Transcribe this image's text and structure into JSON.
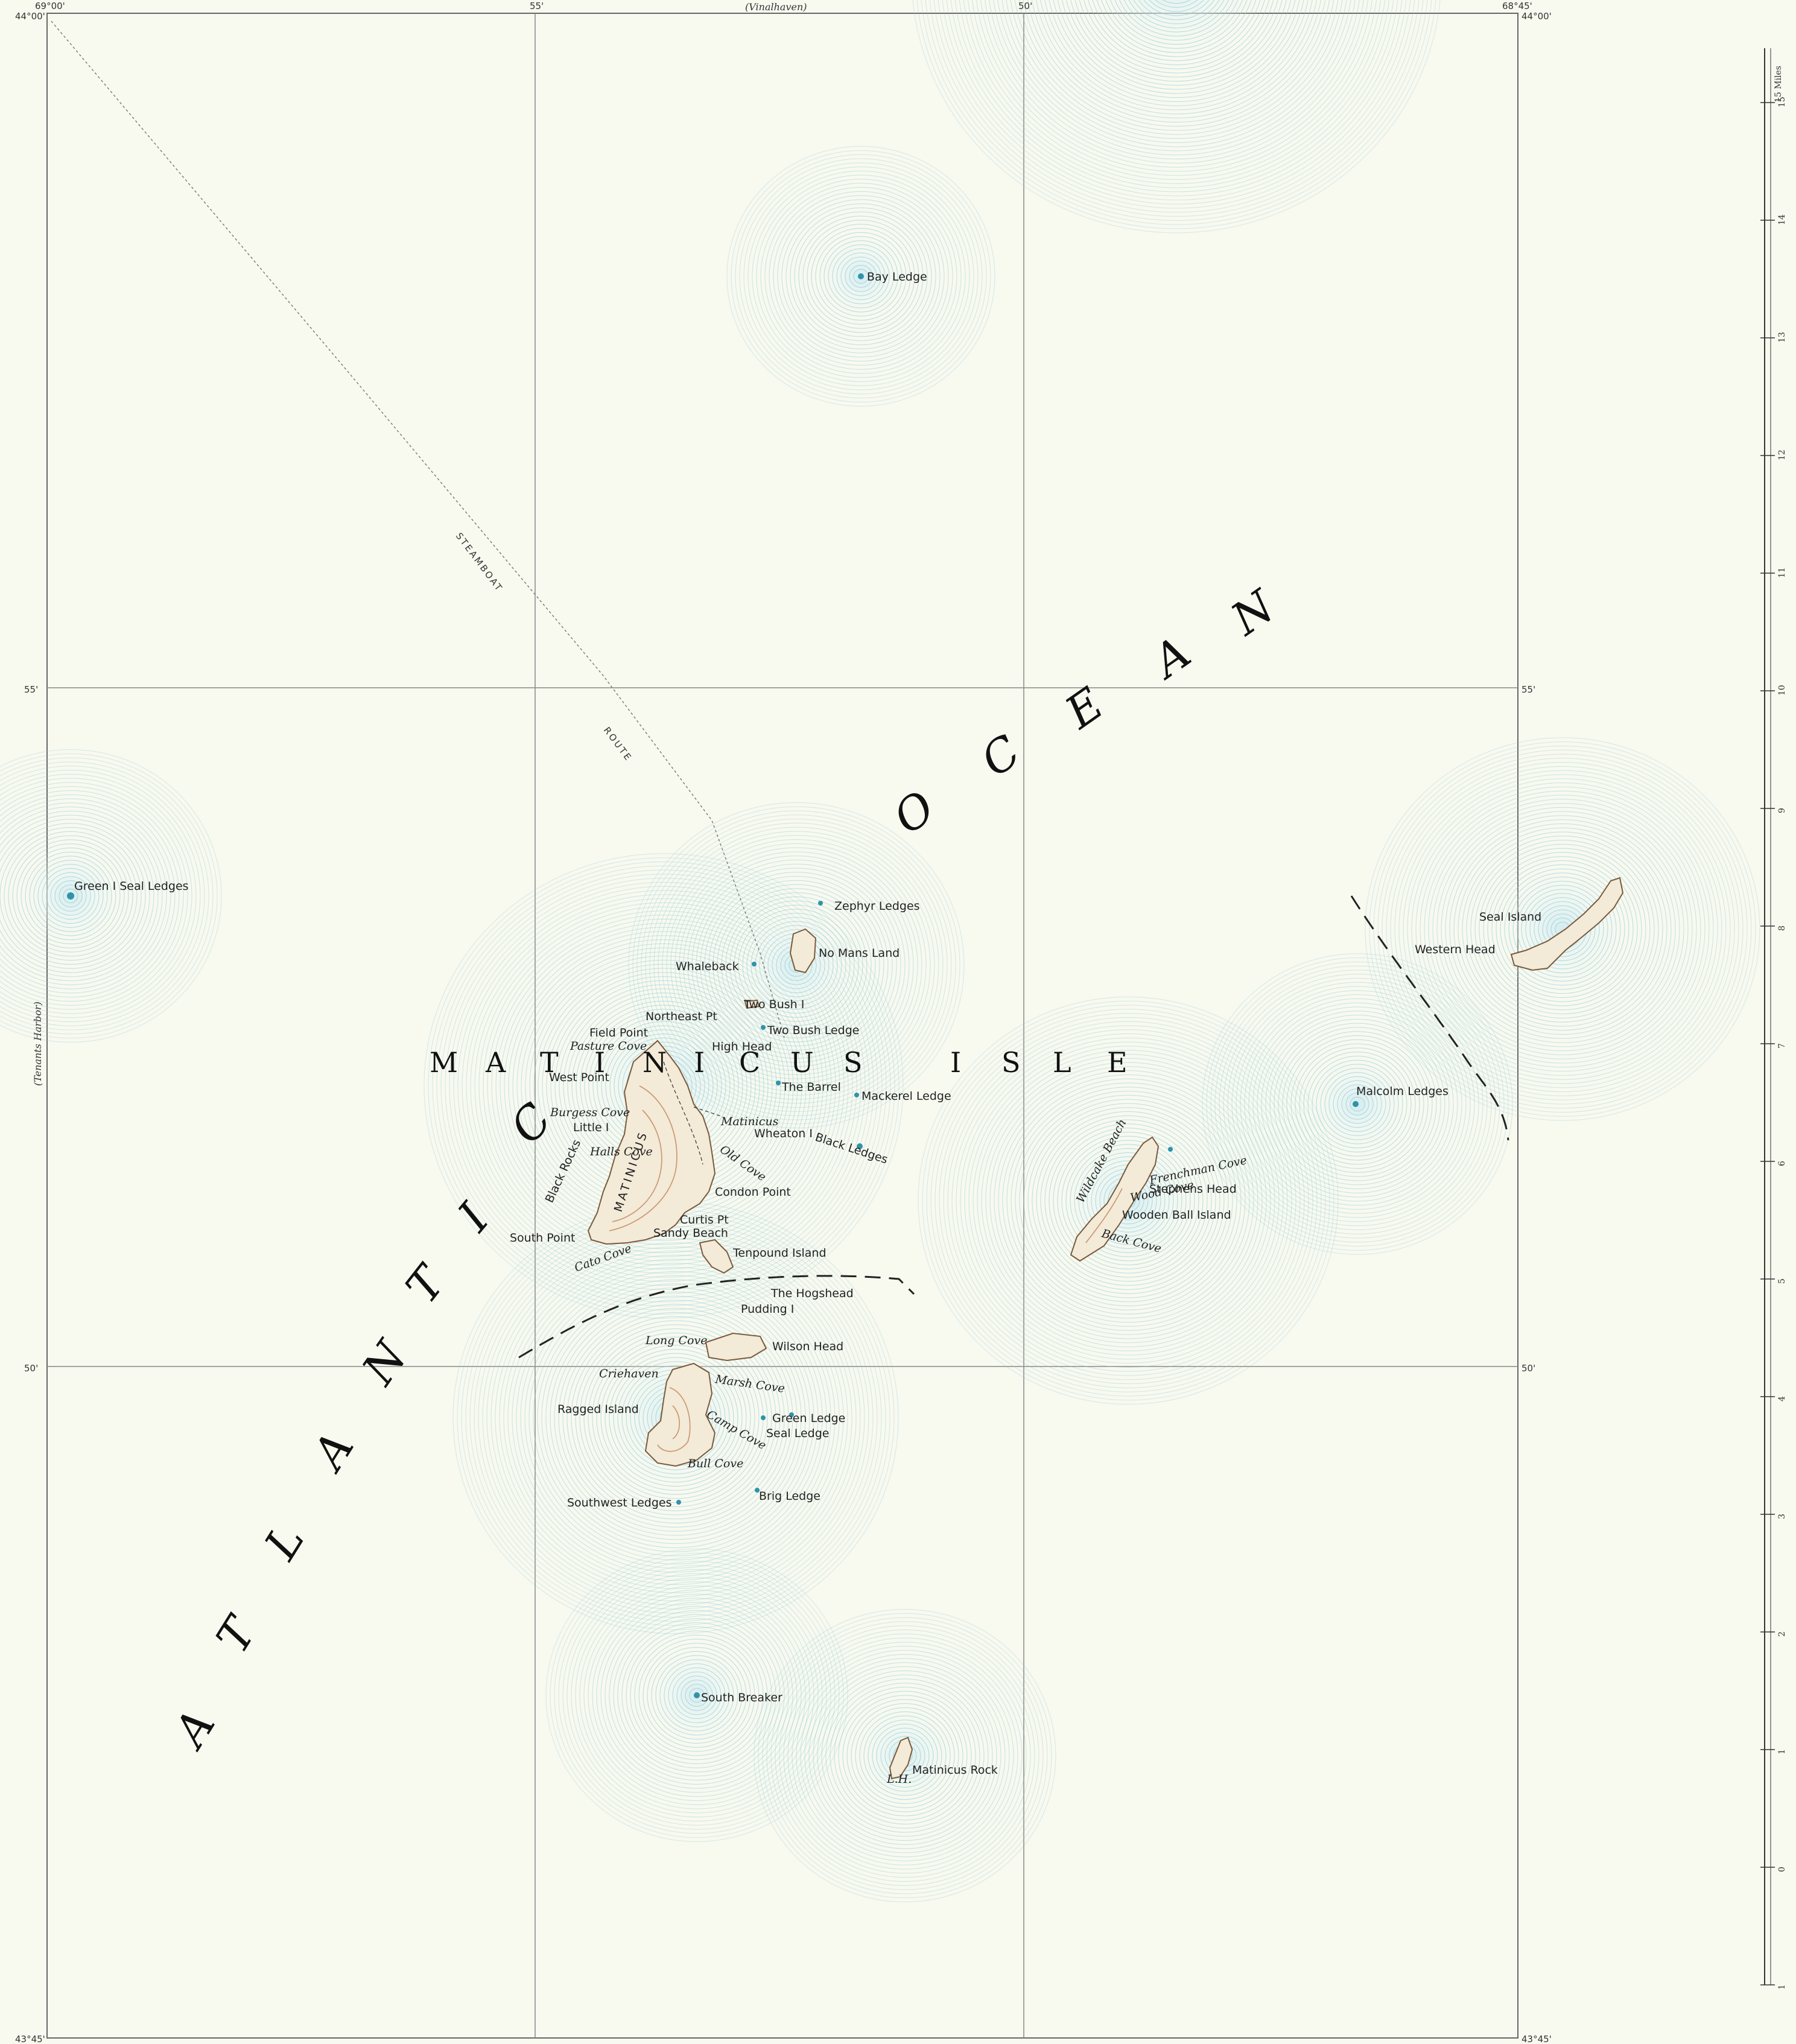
{
  "border": {
    "corner_top_left": "44°00'",
    "corner_top_left_lon": "69°00'",
    "corner_top_right": "44°00'",
    "corner_top_right_lon": "68°45'",
    "corner_bottom_left": "43°45'",
    "corner_bottom_right": "43°45'",
    "top_tick_55": "55'",
    "top_tick_50": "50'",
    "top_neighbor": "(Vinalhaven)",
    "left_neighbor": "(Tenants Harbor)",
    "left_55": "55'",
    "left_50": "50'",
    "right_55": "55'",
    "right_50": "50'"
  },
  "region_labels": {
    "ocean_letters": [
      "A",
      "T",
      "L",
      "A",
      "N",
      "T",
      "I",
      "C",
      "O",
      "C",
      "E",
      "A",
      "N"
    ],
    "isle_letters": [
      "M",
      "A",
      "T",
      "I",
      "N",
      "I",
      "C",
      "U",
      "S",
      "I",
      "S",
      "L",
      "E"
    ],
    "route_word_1": "STEAMBOAT",
    "route_word_2": "ROUTE",
    "island_vertical": "MATINICUS"
  },
  "place_names": [
    {
      "name": "Bay Ledge"
    },
    {
      "name": "Green I Seal Ledges"
    },
    {
      "name": "Zephyr Ledges"
    },
    {
      "name": "No Mans Land"
    },
    {
      "name": "Whaleback"
    },
    {
      "name": "Two Bush I"
    },
    {
      "name": "Northeast Pt"
    },
    {
      "name": "Field Point"
    },
    {
      "name": "Two Bush Ledge"
    },
    {
      "name": "High Head"
    },
    {
      "name": "West Point"
    },
    {
      "name": "The Barrel"
    },
    {
      "name": "Mackerel Ledge"
    },
    {
      "name": "Little I"
    },
    {
      "name": "Matinicus"
    },
    {
      "name": "Wheaton I"
    },
    {
      "name": "Black Ledges"
    },
    {
      "name": "Black Rocks"
    },
    {
      "name": "Condon Point"
    },
    {
      "name": "Curtis Pt"
    },
    {
      "name": "Sandy Beach"
    },
    {
      "name": "South Point"
    },
    {
      "name": "Tenpound Island"
    },
    {
      "name": "The Hogshead"
    },
    {
      "name": "Pudding I"
    },
    {
      "name": "Wilson Head"
    },
    {
      "name": "Criehaven"
    },
    {
      "name": "Ragged Island"
    },
    {
      "name": "Green Ledge"
    },
    {
      "name": "Seal Ledge"
    },
    {
      "name": "Southwest Ledges"
    },
    {
      "name": "Brig Ledge"
    },
    {
      "name": "South Breaker"
    },
    {
      "name": "Matinicus Rock"
    },
    {
      "name": "Seal Island"
    },
    {
      "name": "Western Head"
    },
    {
      "name": "Malcolm Ledges"
    },
    {
      "name": "Stephens Head"
    },
    {
      "name": "Wooden Ball Island"
    }
  ],
  "water_names": [
    {
      "name": "Pasture Cove"
    },
    {
      "name": "Burgess Cove"
    },
    {
      "name": "Halls Cove"
    },
    {
      "name": "Old Cove"
    },
    {
      "name": "Cato Cove"
    },
    {
      "name": "Long Cove"
    },
    {
      "name": "Marsh Cove"
    },
    {
      "name": "Camp Cove"
    },
    {
      "name": "Bull Cove"
    },
    {
      "name": "Frenchman Cove"
    },
    {
      "name": "Wood Cove"
    },
    {
      "name": "Wildcake Beach"
    },
    {
      "name": "Back Cove"
    }
  ],
  "small_marks": {
    "lighthouse": "L.H."
  },
  "scale_bar": {
    "title": "15 Miles",
    "ticks": [
      "15",
      "14",
      "13",
      "12",
      "11",
      "10",
      "9",
      "8",
      "7",
      "6",
      "5",
      "4",
      "3",
      "2",
      "1",
      "0",
      "1"
    ]
  },
  "colors": {
    "paper": "#f8f9ef",
    "water_contour": "#8fcad8",
    "land": "#f3ead8",
    "land_contour": "#c9936a",
    "grid": "#777777",
    "text": "#222222"
  }
}
